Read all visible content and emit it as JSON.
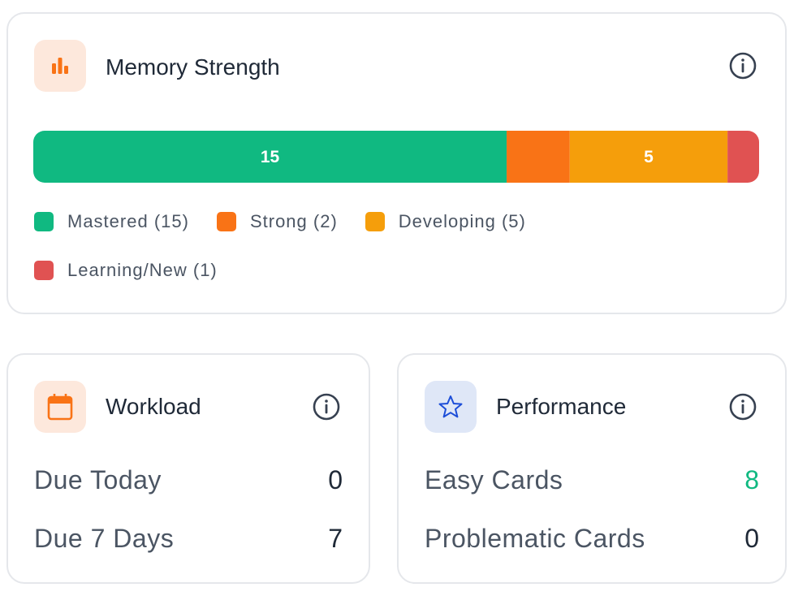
{
  "memory_strength": {
    "title": "Memory Strength",
    "segments": [
      {
        "label": "Mastered (15)",
        "value": 15,
        "color": "#10b981"
      },
      {
        "label": "Strong (2)",
        "value": 2,
        "color": "#f97316"
      },
      {
        "label": "Developing (5)",
        "value": 5,
        "color": "#f59e0b"
      },
      {
        "label": "Learning/New (1)",
        "value": 1,
        "color": "#e05252"
      }
    ]
  },
  "workload": {
    "title": "Workload",
    "rows": [
      {
        "label": "Due Today",
        "value": 0,
        "color": "#1f2937"
      },
      {
        "label": "Due 7 Days",
        "value": 7,
        "color": "#1f2937"
      }
    ]
  },
  "performance": {
    "title": "Performance",
    "rows": [
      {
        "label": "Easy Cards",
        "value": 8,
        "color": "#10b981"
      },
      {
        "label": "Problematic Cards",
        "value": 0,
        "color": "#1f2937"
      }
    ]
  }
}
